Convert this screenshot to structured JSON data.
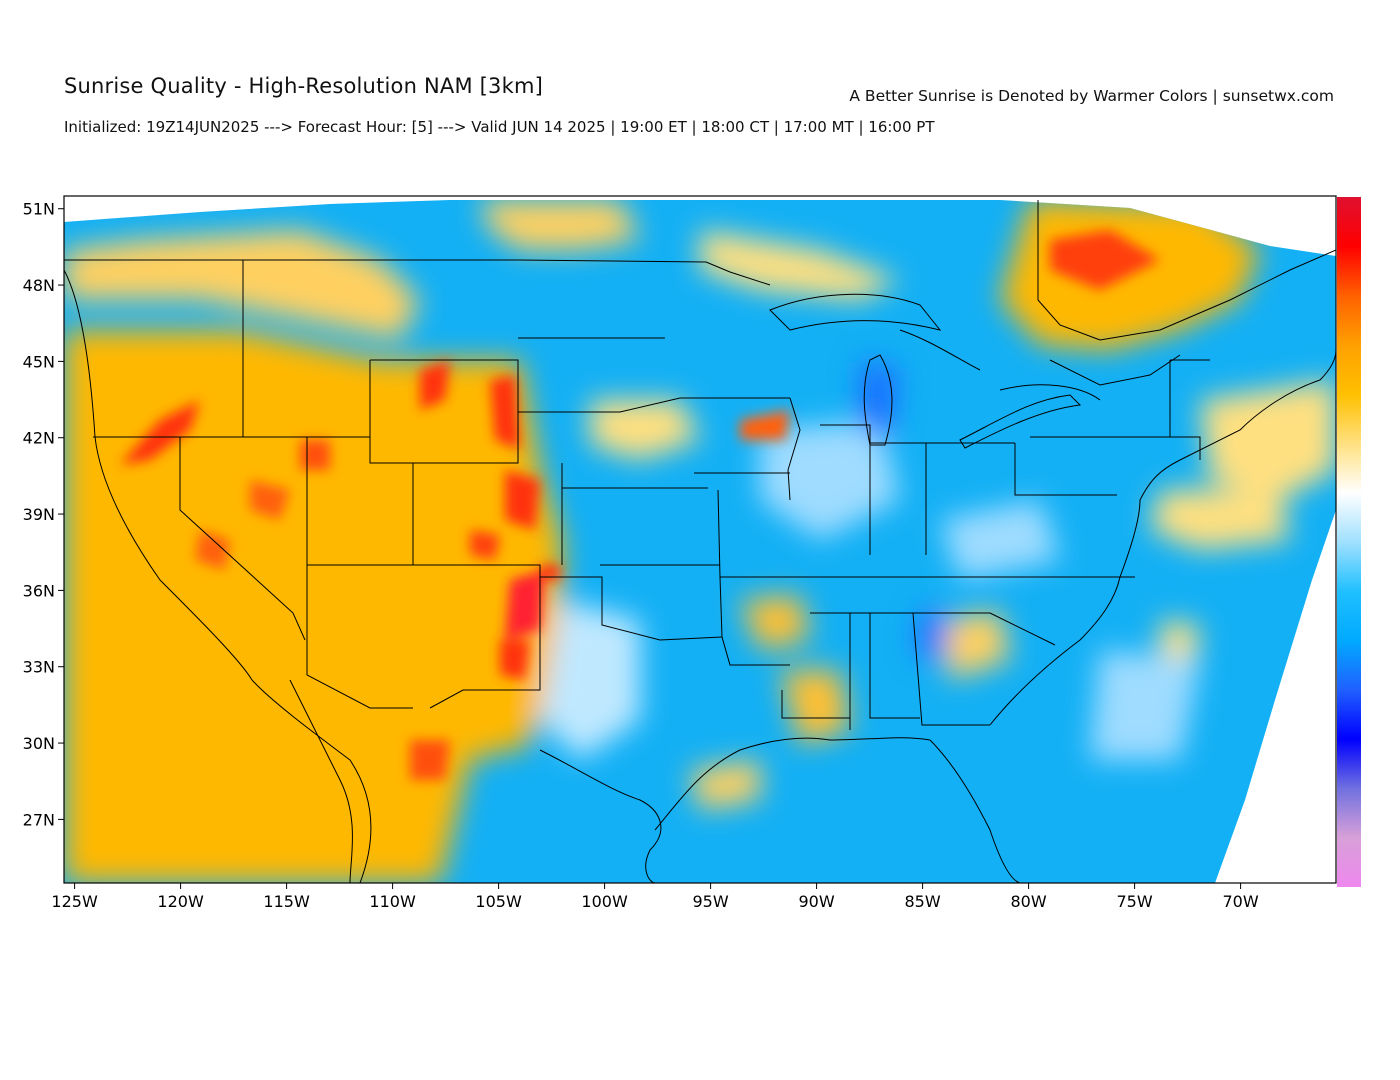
{
  "header": {
    "title": "Sunrise Quality - High-Resolution NAM [3km]",
    "subtitle": "Initialized: 19Z14JUN2025 ---> Forecast Hour: [5] ---> Valid JUN 14 2025 | 19:00 ET | 18:00 CT | 17:00 MT | 16:00 PT",
    "credit": "A Better Sunrise is Denoted by Warmer Colors | sunsetwx.com"
  },
  "map": {
    "projection": "lat-lon",
    "lon_range": [
      -125.5,
      -65.5
    ],
    "lat_range": [
      24.5,
      51.5
    ],
    "lat_ticks": [
      {
        "value": 51,
        "label": "51N"
      },
      {
        "value": 48,
        "label": "48N"
      },
      {
        "value": 45,
        "label": "45N"
      },
      {
        "value": 42,
        "label": "42N"
      },
      {
        "value": 39,
        "label": "39N"
      },
      {
        "value": 36,
        "label": "36N"
      },
      {
        "value": 33,
        "label": "33N"
      },
      {
        "value": 30,
        "label": "30N"
      },
      {
        "value": 27,
        "label": "27N"
      }
    ],
    "lon_ticks": [
      {
        "value": -125,
        "label": "125W"
      },
      {
        "value": -120,
        "label": "120W"
      },
      {
        "value": -115,
        "label": "115W"
      },
      {
        "value": -110,
        "label": "110W"
      },
      {
        "value": -105,
        "label": "105W"
      },
      {
        "value": -100,
        "label": "100W"
      },
      {
        "value": -95,
        "label": "95W"
      },
      {
        "value": -90,
        "label": "90W"
      },
      {
        "value": -85,
        "label": "85W"
      },
      {
        "value": -80,
        "label": "80W"
      },
      {
        "value": -75,
        "label": "75W"
      },
      {
        "value": -70,
        "label": "70W"
      }
    ],
    "colorbar": [
      "#ee88ee",
      "#d8a0d8",
      "#7070e0",
      "#0000ff",
      "#2060ff",
      "#00aaff",
      "#20c0ff",
      "#a0e0ff",
      "#ffffff",
      "#ffe080",
      "#ffc000",
      "#ffa000",
      "#ff6000",
      "#ff0000",
      "#e01030"
    ],
    "colors": {
      "cool": "#13b0f5",
      "cool_light": "#8fd8ff",
      "warm": "#ffb800",
      "warm_light": "#ffd860",
      "hot": "#ff3010",
      "white": "#ffffff"
    }
  }
}
